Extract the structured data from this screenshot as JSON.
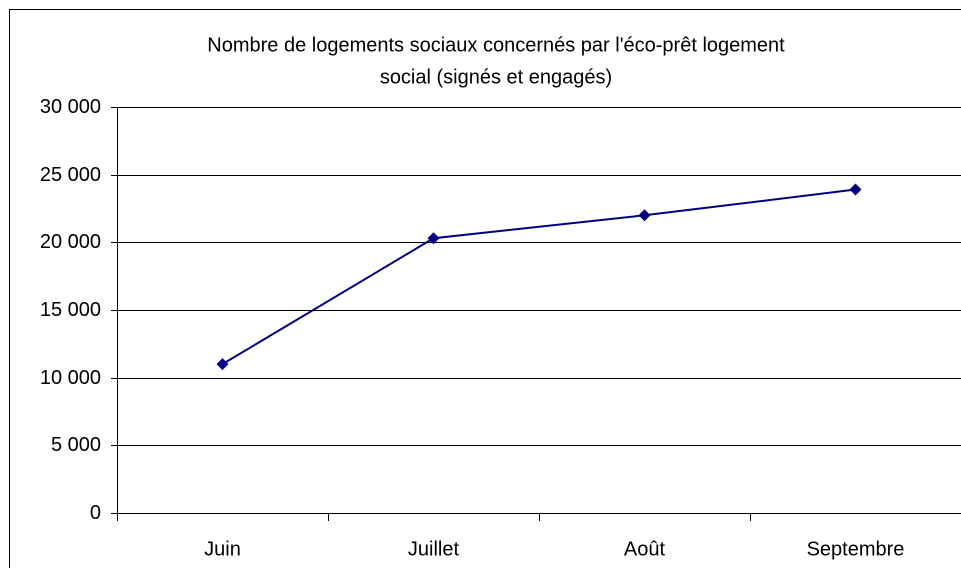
{
  "chart_data": {
    "type": "line",
    "title": [
      "Nombre de logements sociaux concernés par l'éco-prêt logement",
      "social (signés et engagés)"
    ],
    "categories": [
      "Juin",
      "Juillet",
      "Août",
      "Septembre"
    ],
    "series": [
      {
        "color": "#000080",
        "values": [
          11000,
          20300,
          22000,
          23900
        ]
      }
    ],
    "ylim": [
      0,
      30000
    ],
    "yticks": [
      0,
      {
        "value": 5000,
        "label": "5 000"
      },
      {
        "value": 10000,
        "label": "10 000"
      },
      {
        "value": 15000,
        "label": "15 000"
      },
      {
        "value": 20000,
        "label": "20 000"
      },
      {
        "value": 25000,
        "label": "25 000"
      },
      {
        "value": 30000,
        "label": "30 000"
      }
    ],
    "grid": true
  }
}
